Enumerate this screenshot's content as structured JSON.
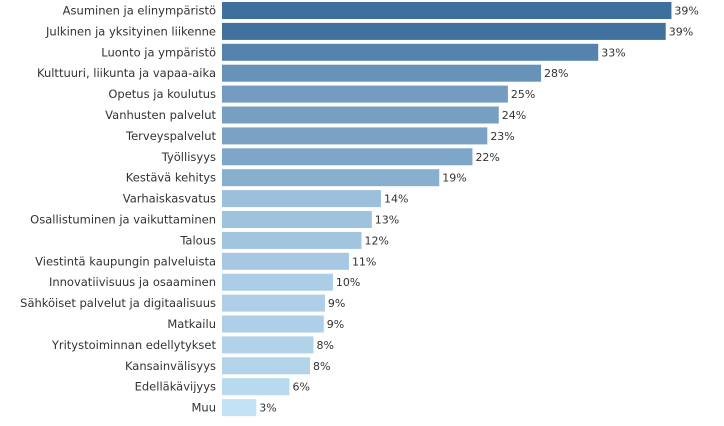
{
  "chart_data": {
    "type": "bar",
    "orientation": "horizontal",
    "title": "",
    "xlabel": "",
    "ylabel": "",
    "value_unit": "%",
    "xlim": [
      0,
      39
    ],
    "grid": false,
    "legend": "none",
    "categories": [
      "Asuminen ja elinympäristö",
      "Julkinen ja yksityinen liikenne",
      "Luonto ja ympäristö",
      "Kulttuuri, liikunta ja vapaa-aika",
      "Opetus ja koulutus",
      "Vanhusten palvelut",
      "Terveyspalvelut",
      "Työllisyys",
      "Kestävä kehitys",
      "Varhaiskasvatus",
      "Osallistuminen ja vaikuttaminen",
      "Talous",
      "Viestintä kaupungin palveluista",
      "Innovatiivisuus ja osaaminen",
      "Sähköiset palvelut ja digitaalisuus",
      "Matkailu",
      "Yritystoiminnan edellytykset",
      "Kansainvälisyys",
      "Edelläkävijyys",
      "Muu"
    ],
    "values": [
      39.3,
      38.8,
      32.9,
      27.9,
      25.0,
      24.2,
      23.2,
      21.9,
      19.0,
      13.9,
      13.1,
      12.2,
      11.1,
      9.7,
      9.0,
      8.9,
      8.0,
      7.7,
      5.9,
      3.0
    ],
    "value_labels": [
      "39%",
      "39%",
      "33%",
      "28%",
      "25%",
      "24%",
      "23%",
      "22%",
      "19%",
      "14%",
      "13%",
      "12%",
      "11%",
      "10%",
      "9%",
      "9%",
      "8%",
      "8%",
      "6%",
      "3%"
    ],
    "color_scale": {
      "low": "#c4e2f5",
      "high": "#3e6f9e"
    }
  }
}
